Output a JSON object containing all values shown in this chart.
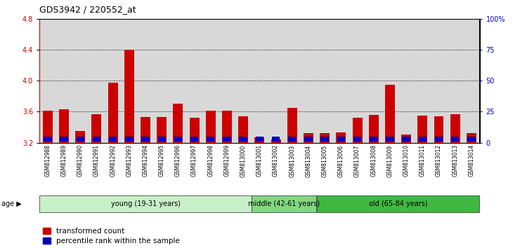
{
  "title": "GDS3942 / 220552_at",
  "samples": [
    "GSM812988",
    "GSM812989",
    "GSM812990",
    "GSM812991",
    "GSM812992",
    "GSM812993",
    "GSM812994",
    "GSM812995",
    "GSM812996",
    "GSM812997",
    "GSM812998",
    "GSM812999",
    "GSM813000",
    "GSM813001",
    "GSM813002",
    "GSM813003",
    "GSM813004",
    "GSM813005",
    "GSM813006",
    "GSM813007",
    "GSM813008",
    "GSM813009",
    "GSM813010",
    "GSM813011",
    "GSM813012",
    "GSM813013",
    "GSM813014"
  ],
  "transformed_count": [
    3.61,
    3.63,
    3.35,
    3.57,
    3.97,
    4.4,
    3.53,
    3.53,
    3.7,
    3.52,
    3.61,
    3.61,
    3.54,
    3.27,
    3.24,
    3.65,
    3.32,
    3.32,
    3.33,
    3.52,
    3.56,
    3.95,
    3.3,
    3.55,
    3.54,
    3.57,
    3.32
  ],
  "percentile_rank": [
    7,
    8,
    5,
    7,
    7,
    7,
    5,
    5,
    7,
    5,
    7,
    7,
    5,
    5,
    5,
    5,
    5,
    5,
    5,
    7,
    7,
    7,
    5,
    7,
    7,
    7,
    5
  ],
  "groups": [
    {
      "label": "young (19-31 years)",
      "start": 0,
      "end": 13,
      "color": "#c8f0c8"
    },
    {
      "label": "middle (42-61 years)",
      "start": 13,
      "end": 17,
      "color": "#80d880"
    },
    {
      "label": "old (65-84 years)",
      "start": 17,
      "end": 27,
      "color": "#40b840"
    }
  ],
  "ylim_left": [
    3.2,
    4.8
  ],
  "ylim_right": [
    0,
    100
  ],
  "yticks_left": [
    3.2,
    3.6,
    4.0,
    4.4,
    4.8
  ],
  "yticks_right": [
    0,
    25,
    50,
    75,
    100
  ],
  "bar_color_red": "#cc0000",
  "bar_color_blue": "#0000bb",
  "bg_color": "#d8d8d8",
  "legend_label_red": "transformed count",
  "legend_label_blue": "percentile rank within the sample",
  "left_axis_color": "#cc0000",
  "right_axis_color": "#0000bb",
  "title_fontsize": 9,
  "tick_fontsize": 7,
  "label_fontsize": 7,
  "bar_width": 0.6
}
